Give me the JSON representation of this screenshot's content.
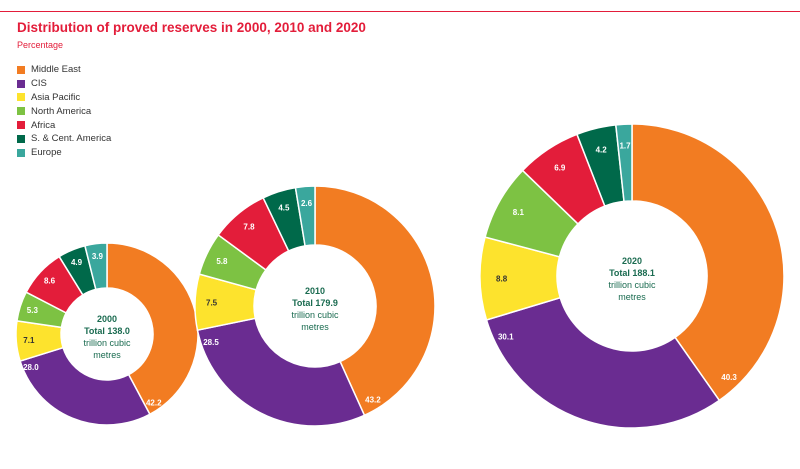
{
  "header": {
    "title": "Distribution of proved reserves in 2000, 2010 and 2020",
    "subtitle": "Percentage"
  },
  "chart_data": {
    "type": "pie",
    "style": "donut",
    "title": "Distribution of proved reserves in 2000, 2010 and 2020",
    "subtitle": "Percentage",
    "categories": [
      "Middle East",
      "CIS",
      "Asia Pacific",
      "North America",
      "Africa",
      "S. & Cent. America",
      "Europe"
    ],
    "colors": [
      "#f27c22",
      "#6a2c91",
      "#fde32d",
      "#7dc243",
      "#e31d3a",
      "#00694a",
      "#3aa79d"
    ],
    "series": [
      {
        "name": "2000",
        "year_label": "2000",
        "total_label": "Total 138.0",
        "unit_line1": "trillion cubic",
        "unit_line2": "metres",
        "values": [
          42.2,
          28.0,
          7.1,
          5.3,
          8.6,
          4.9,
          3.9
        ],
        "labels": [
          "42.2",
          "28.0",
          "7.1",
          "5.3",
          "8.6",
          "4.9",
          "3.9"
        ]
      },
      {
        "name": "2010",
        "year_label": "2010",
        "total_label": "Total 179.9",
        "unit_line1": "trillion cubic",
        "unit_line2": "metres",
        "values": [
          43.2,
          28.5,
          7.5,
          5.8,
          7.8,
          4.5,
          2.6
        ],
        "labels": [
          "43.2",
          "28.5",
          "7.5",
          "5.8",
          "7.8",
          "4.5",
          "2.6"
        ]
      },
      {
        "name": "2020",
        "year_label": "2020",
        "total_label": "Total 188.1",
        "unit_line1": "trillion cubic",
        "unit_line2": "metres",
        "values": [
          40.3,
          30.1,
          8.8,
          8.1,
          6.9,
          4.2,
          1.7
        ],
        "labels": [
          "40.3",
          "30.1",
          "8.8",
          "8.1",
          "6.9",
          "4.2",
          "1.7"
        ]
      }
    ]
  }
}
